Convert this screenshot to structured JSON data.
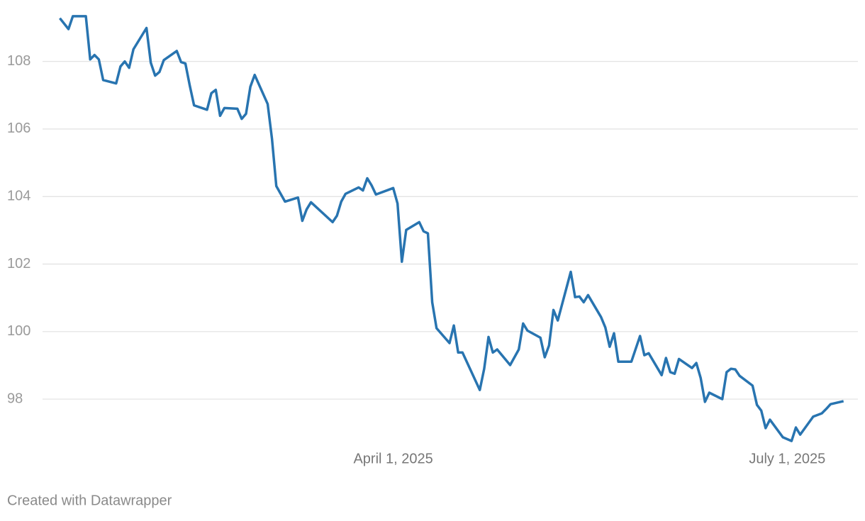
{
  "chart_data": {
    "type": "line",
    "credit": "Created with Datawrapper",
    "x": [
      "2025-01-14",
      "2025-01-16",
      "2025-01-17",
      "2025-01-20",
      "2025-01-21",
      "2025-01-22",
      "2025-01-23",
      "2025-01-24",
      "2025-01-27",
      "2025-01-28",
      "2025-01-29",
      "2025-01-30",
      "2025-01-31",
      "2025-02-03",
      "2025-02-04",
      "2025-02-05",
      "2025-02-06",
      "2025-02-07",
      "2025-02-10",
      "2025-02-11",
      "2025-02-12",
      "2025-02-13",
      "2025-02-14",
      "2025-02-17",
      "2025-02-18",
      "2025-02-19",
      "2025-02-20",
      "2025-02-21",
      "2025-02-24",
      "2025-02-25",
      "2025-02-26",
      "2025-02-27",
      "2025-02-28",
      "2025-03-03",
      "2025-03-04",
      "2025-03-05",
      "2025-03-07",
      "2025-03-10",
      "2025-03-11",
      "2025-03-12",
      "2025-03-13",
      "2025-03-18",
      "2025-03-19",
      "2025-03-20",
      "2025-03-21",
      "2025-03-24",
      "2025-03-25",
      "2025-03-26",
      "2025-03-27",
      "2025-03-28",
      "2025-04-01",
      "2025-04-02",
      "2025-04-03",
      "2025-04-04",
      "2025-04-07",
      "2025-04-08",
      "2025-04-09",
      "2025-04-10",
      "2025-04-11",
      "2025-04-14",
      "2025-04-15",
      "2025-04-16",
      "2025-04-17",
      "2025-04-21",
      "2025-04-22",
      "2025-04-23",
      "2025-04-24",
      "2025-04-25",
      "2025-04-28",
      "2025-04-30",
      "2025-05-01",
      "2025-05-02",
      "2025-05-05",
      "2025-05-06",
      "2025-05-07",
      "2025-05-08",
      "2025-05-09",
      "2025-05-12",
      "2025-05-13",
      "2025-05-14",
      "2025-05-15",
      "2025-05-16",
      "2025-05-19",
      "2025-05-20",
      "2025-05-21",
      "2025-05-22",
      "2025-05-23",
      "2025-05-26",
      "2025-05-28",
      "2025-05-29",
      "2025-05-30",
      "2025-06-02",
      "2025-06-03",
      "2025-06-04",
      "2025-06-05",
      "2025-06-06",
      "2025-06-09",
      "2025-06-10",
      "2025-06-11",
      "2025-06-12",
      "2025-06-13",
      "2025-06-16",
      "2025-06-17",
      "2025-06-18",
      "2025-06-19",
      "2025-06-20",
      "2025-06-23",
      "2025-06-24",
      "2025-06-25",
      "2025-06-26",
      "2025-06-27",
      "2025-06-30",
      "2025-07-02",
      "2025-07-03",
      "2025-07-04",
      "2025-07-07",
      "2025-07-09",
      "2025-07-10",
      "2025-07-11",
      "2025-07-14"
    ],
    "series": [
      {
        "color": "#2874b0",
        "values": [
          109.28,
          108.96,
          109.34,
          109.34,
          108.06,
          108.19,
          108.06,
          107.45,
          107.35,
          107.85,
          108.0,
          107.81,
          108.36,
          108.99,
          107.96,
          107.58,
          107.69,
          108.04,
          108.31,
          107.98,
          107.94,
          107.29,
          106.7,
          106.57,
          107.06,
          107.16,
          106.39,
          106.62,
          106.6,
          106.3,
          106.45,
          107.25,
          107.6,
          106.74,
          105.71,
          104.31,
          103.85,
          103.97,
          103.28,
          103.62,
          103.83,
          103.24,
          103.43,
          103.85,
          104.08,
          104.27,
          104.18,
          104.54,
          104.33,
          104.06,
          104.25,
          103.79,
          102.07,
          103.01,
          103.24,
          102.97,
          102.91,
          100.87,
          100.1,
          99.66,
          100.18,
          99.38,
          99.38,
          98.27,
          98.9,
          99.84,
          99.38,
          99.47,
          99.01,
          99.47,
          100.24,
          100.03,
          99.82,
          99.24,
          99.59,
          100.64,
          100.33,
          101.77,
          101.02,
          101.04,
          100.87,
          101.08,
          100.43,
          100.12,
          99.55,
          99.95,
          99.11,
          99.11,
          99.87,
          99.3,
          99.36,
          98.71,
          99.22,
          98.8,
          98.75,
          99.19,
          98.92,
          99.07,
          98.63,
          97.92,
          98.19,
          98.0,
          98.8,
          98.9,
          98.88,
          98.69,
          98.4,
          97.83,
          97.66,
          97.14,
          97.39,
          96.87,
          96.76,
          97.16,
          96.95,
          97.48,
          97.58,
          97.71,
          97.85,
          97.94
        ]
      }
    ],
    "xlim": [
      "2025-01-10",
      "2025-07-17"
    ],
    "xticks": [
      {
        "value": "2025-04-01",
        "label": "April 1, 2025"
      },
      {
        "value": "2025-07-01",
        "label": "July 1, 2025"
      }
    ],
    "ylim": [
      96.7,
      109.4
    ],
    "yticks": [
      98,
      100,
      102,
      104,
      106,
      108
    ],
    "grid": true
  }
}
